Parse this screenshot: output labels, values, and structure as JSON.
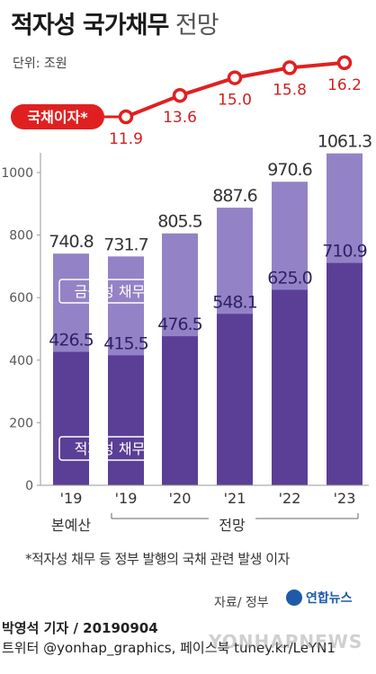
{
  "title": {
    "bold": "적자성 국가채무",
    "light": "전망"
  },
  "unit": "단위: 조원",
  "colors": {
    "total_bar": "#9383c6",
    "deficit_bar": "#5b3f96",
    "interest_line": "#e02020",
    "label_dark": "#2e2163",
    "label_red": "#d21f1f",
    "axis": "#999999"
  },
  "chart_data": [
    {
      "type": "bar",
      "stacked": true,
      "categories": [
        "'19",
        "'19",
        "'20",
        "'21",
        "'22",
        "'23"
      ],
      "series": [
        {
          "name": "적자성 채무",
          "values": [
            426.5,
            415.5,
            476.5,
            548.1,
            625.0,
            710.9
          ],
          "labels": [
            "426.5",
            "415.5",
            "476.5",
            "548.1",
            "625.0",
            "710.9"
          ]
        },
        {
          "name": "금융성 채무",
          "values": [
            314.3,
            316.2,
            329.0,
            339.5,
            345.6,
            350.4
          ]
        }
      ],
      "totals": [
        740.8,
        731.7,
        805.5,
        887.6,
        970.6,
        1061.3
      ],
      "total_labels": [
        "740.8",
        "731.7",
        "805.5",
        "887.6",
        "970.6",
        "1061.3"
      ],
      "y_ticks": [
        "0",
        "200",
        "400",
        "600",
        "800",
        "1000"
      ],
      "ylim": [
        0,
        1100
      ],
      "group_labels": {
        "budget": "본예산",
        "forecast": "전망"
      },
      "grid": false
    },
    {
      "type": "line",
      "name": "국채이자*",
      "categories": [
        "'19",
        "'20",
        "'21",
        "'22",
        "'23"
      ],
      "values": [
        11.9,
        13.6,
        15.0,
        15.8,
        16.2
      ],
      "labels": [
        "11.9",
        "13.6",
        "15.0",
        "15.8",
        "16.2"
      ]
    }
  ],
  "footnote": "*적자성 채무 등 정부 발행의 국채 관련 발생 이자",
  "source": "자료/ 정부",
  "logo_text": "연합뉴스",
  "byline": {
    "reporter": "박영석 기자 / 20190904",
    "contact": "트위터 @yonhap_graphics, 페이스북 tuney.kr/LeYN1"
  },
  "watermark": "YONHAPNEWS"
}
